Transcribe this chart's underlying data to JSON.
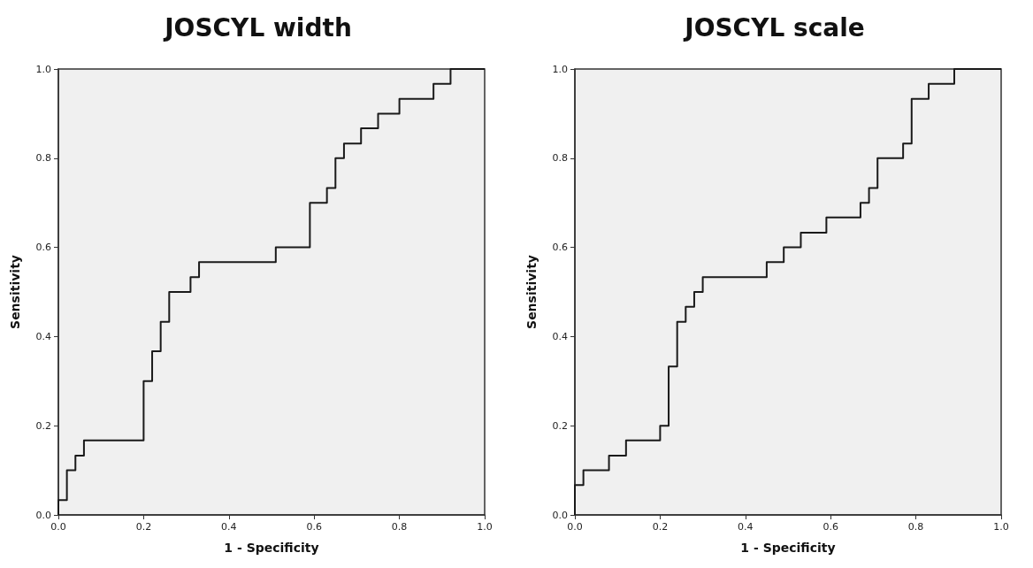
{
  "chart_data": [
    {
      "type": "step",
      "title": "JOSCYL width",
      "xlabel": "1 - Specificity",
      "ylabel": "Sensitivity",
      "x": [
        0,
        0,
        0.02,
        0.04,
        0.06,
        0.2,
        0.22,
        0.24,
        0.26,
        0.31,
        0.33,
        0.51,
        0.59,
        0.63,
        0.65,
        0.67,
        0.71,
        0.75,
        0.8,
        0.88,
        0.92,
        1
      ],
      "values": [
        0,
        0.033,
        0.1,
        0.133,
        0.167,
        0.3,
        0.367,
        0.433,
        0.5,
        0.533,
        0.567,
        0.6,
        0.7,
        0.733,
        0.8,
        0.833,
        0.867,
        0.9,
        0.933,
        0.967,
        1,
        1
      ],
      "color": "#1a1a1a",
      "marker": "none",
      "grid": false,
      "xlim": [
        0,
        1
      ],
      "ylim": [
        0,
        1
      ],
      "xticks": [
        {
          "value": 0,
          "label": "0.0"
        },
        {
          "value": 0.2,
          "label": "0.2"
        },
        {
          "value": 0.4,
          "label": "0.4"
        },
        {
          "value": 0.6,
          "label": "0.6"
        },
        {
          "value": 0.8,
          "label": "0.8"
        },
        {
          "value": 1,
          "label": "1.0"
        }
      ],
      "yticks": [
        {
          "value": 0,
          "label": "0.0"
        },
        {
          "value": 0.2,
          "label": "0.2"
        },
        {
          "value": 0.4,
          "label": "0.4"
        },
        {
          "value": 0.6,
          "label": "0.6"
        },
        {
          "value": 0.8,
          "label": "0.8"
        },
        {
          "value": 1,
          "label": "1.0"
        }
      ]
    },
    {
      "type": "step",
      "title": "JOSCYL scale",
      "xlabel": "1 - Specificity",
      "ylabel": "Sensitivity",
      "x": [
        0,
        0,
        0.02,
        0.08,
        0.12,
        0.2,
        0.22,
        0.24,
        0.26,
        0.28,
        0.3,
        0.45,
        0.49,
        0.53,
        0.59,
        0.67,
        0.69,
        0.71,
        0.77,
        0.79,
        0.83,
        0.89,
        1
      ],
      "values": [
        0,
        0.067,
        0.1,
        0.133,
        0.167,
        0.2,
        0.333,
        0.433,
        0.467,
        0.5,
        0.533,
        0.567,
        0.6,
        0.633,
        0.667,
        0.7,
        0.733,
        0.8,
        0.833,
        0.933,
        0.967,
        1,
        1
      ],
      "color": "#1a1a1a",
      "marker": "none",
      "grid": false,
      "xlim": [
        0,
        1
      ],
      "ylim": [
        0,
        1
      ],
      "xticks": [
        {
          "value": 0,
          "label": "0.0"
        },
        {
          "value": 0.2,
          "label": "0.2"
        },
        {
          "value": 0.4,
          "label": "0.4"
        },
        {
          "value": 0.6,
          "label": "0.6"
        },
        {
          "value": 0.8,
          "label": "0.8"
        },
        {
          "value": 1,
          "label": "1.0"
        }
      ],
      "yticks": [
        {
          "value": 0,
          "label": "0.0"
        },
        {
          "value": 0.2,
          "label": "0.2"
        },
        {
          "value": 0.4,
          "label": "0.4"
        },
        {
          "value": 0.6,
          "label": "0.6"
        },
        {
          "value": 0.8,
          "label": "0.8"
        },
        {
          "value": 1,
          "label": "1.0"
        }
      ]
    }
  ]
}
